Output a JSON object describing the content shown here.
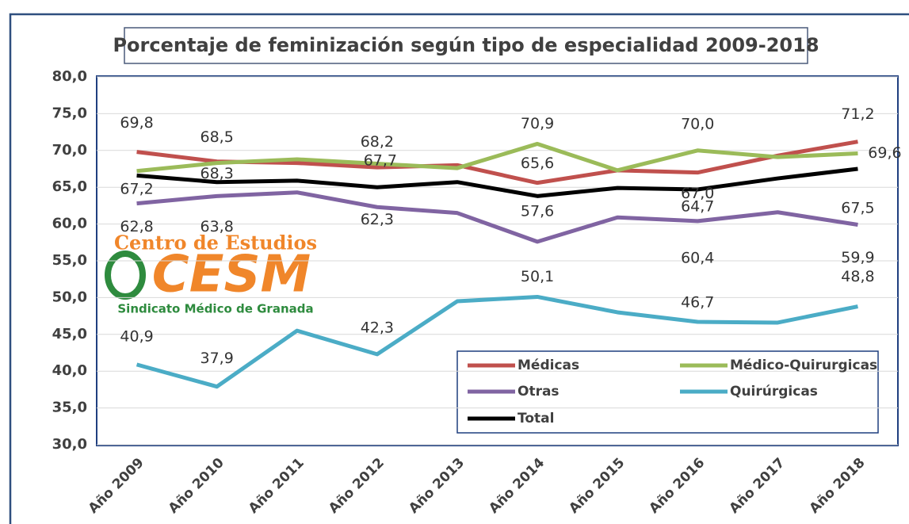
{
  "chart_data": {
    "type": "line",
    "title": "Porcentaje de feminización según tipo de especialidad 2009-2018",
    "categories": [
      "Año 2009",
      "Año 2010",
      "Año 2011",
      "Año 2012",
      "Año 2013",
      "Año 2014",
      "Año 2015",
      "Año 2016",
      "Año 2017",
      "Año 2018"
    ],
    "series": [
      {
        "name": "Médicas",
        "color": "#c0504d",
        "values": [
          69.8,
          68.5,
          68.3,
          67.7,
          68.0,
          65.6,
          67.3,
          67.0,
          69.3,
          71.2
        ],
        "value_labels": [
          "69,8",
          "68,5",
          null,
          "67,7",
          null,
          "65,6",
          null,
          "67,0",
          null,
          "71,2"
        ]
      },
      {
        "name": "Médico-Quirurgicas",
        "color": "#9bbb59",
        "values": [
          67.2,
          68.3,
          68.8,
          68.2,
          67.6,
          70.9,
          67.3,
          70.0,
          69.1,
          69.6
        ],
        "value_labels": [
          "67,2",
          "68,3",
          null,
          "68,2",
          null,
          "70,9",
          null,
          "70,0",
          null,
          "69,6"
        ]
      },
      {
        "name": "Otras",
        "color": "#8064a2",
        "values": [
          62.8,
          63.8,
          64.3,
          62.3,
          61.5,
          57.6,
          60.9,
          60.4,
          61.6,
          59.9
        ],
        "value_labels": [
          "62,8",
          "63,8",
          null,
          "62,3",
          null,
          "57,6",
          null,
          "60,4",
          null,
          "59,9"
        ]
      },
      {
        "name": "Quirúrgicas",
        "color": "#4bacc6",
        "values": [
          40.9,
          37.9,
          45.5,
          42.3,
          49.5,
          50.1,
          48.0,
          46.7,
          46.6,
          48.8
        ],
        "value_labels": [
          "40,9",
          "37,9",
          null,
          "42,3",
          null,
          "50,1",
          null,
          "46,7",
          null,
          "48,8"
        ]
      },
      {
        "name": "Total",
        "color": "#000000",
        "values": [
          66.6,
          65.7,
          65.9,
          65.0,
          65.7,
          63.8,
          64.9,
          64.7,
          66.2,
          67.5
        ],
        "value_labels": [
          null,
          null,
          null,
          null,
          null,
          null,
          null,
          "64,7",
          null,
          "67,5"
        ]
      }
    ],
    "ylim": [
      30,
      80
    ],
    "yticks": [
      {
        "value": 30,
        "label": "30,0"
      },
      {
        "value": 35,
        "label": "35,0"
      },
      {
        "value": 40,
        "label": "40,0"
      },
      {
        "value": 45,
        "label": "45,0"
      },
      {
        "value": 50,
        "label": "50,0"
      },
      {
        "value": 55,
        "label": "55,0"
      },
      {
        "value": 60,
        "label": "60,0"
      },
      {
        "value": 65,
        "label": "65,0"
      },
      {
        "value": 70,
        "label": "70,0"
      },
      {
        "value": 75,
        "label": "75,0"
      },
      {
        "value": 80,
        "label": "80,0"
      }
    ],
    "grid": true,
    "legend": "lower right",
    "logo": {
      "top": "Centro de Estudios",
      "mark": "CESM",
      "bottom": "Sindicato Médico de Granada"
    }
  }
}
